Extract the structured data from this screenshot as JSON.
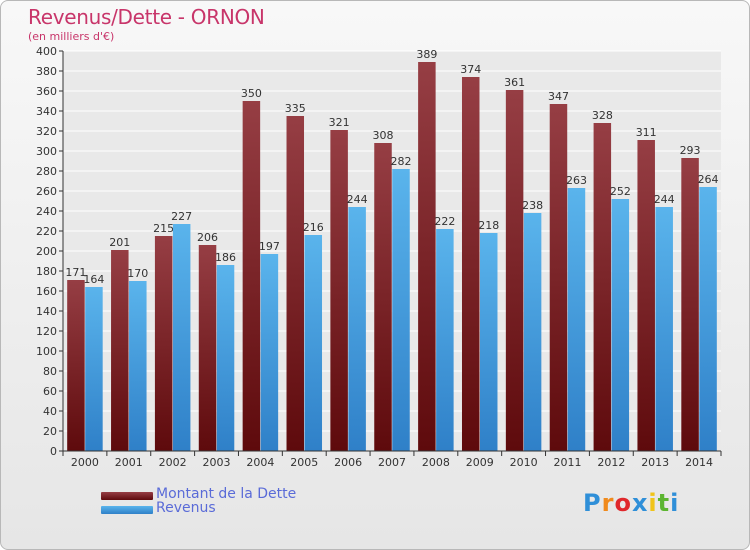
{
  "title": "Revenus/Dette - ORNON",
  "subtitle": "(en milliers d'€)",
  "logo_text": "Proxiti",
  "logo_colors": [
    "#2f8fd8",
    "#f08a1c",
    "#e0282c",
    "#2f8fd8",
    "#f0c419",
    "#5cb531",
    "#2f8fd8"
  ],
  "colors": {
    "dette_top": "#963e44",
    "dette_bottom": "#5e0a0c",
    "revenus_top": "#5ab4ec",
    "revenus_bottom": "#2f80c8",
    "grid": "#ffffff",
    "axis": "#333333",
    "legend_text": "#5a6bd8",
    "title": "#c8356a"
  },
  "legend": [
    {
      "label": "Montant de la Dette",
      "series": "dette"
    },
    {
      "label": "Revenus",
      "series": "revenus"
    }
  ],
  "chart_data": {
    "type": "bar",
    "title": "Revenus/Dette - ORNON",
    "subtitle": "(en milliers d'€)",
    "categories": [
      "2000",
      "2001",
      "2002",
      "2003",
      "2004",
      "2005",
      "2006",
      "2007",
      "2008",
      "2009",
      "2010",
      "2011",
      "2012",
      "2013",
      "2014"
    ],
    "series": [
      {
        "name": "Montant de la Dette",
        "key": "dette",
        "values": [
          171,
          201,
          215,
          206,
          350,
          335,
          321,
          308,
          389,
          374,
          361,
          347,
          328,
          311,
          293
        ]
      },
      {
        "name": "Revenus",
        "key": "revenus",
        "values": [
          164,
          170,
          227,
          186,
          197,
          216,
          244,
          282,
          222,
          218,
          238,
          263,
          252,
          244,
          264
        ]
      }
    ],
    "ylim": [
      0,
      400
    ],
    "ytick_step": 20,
    "grid": true,
    "legend_position": "bottom-left"
  }
}
